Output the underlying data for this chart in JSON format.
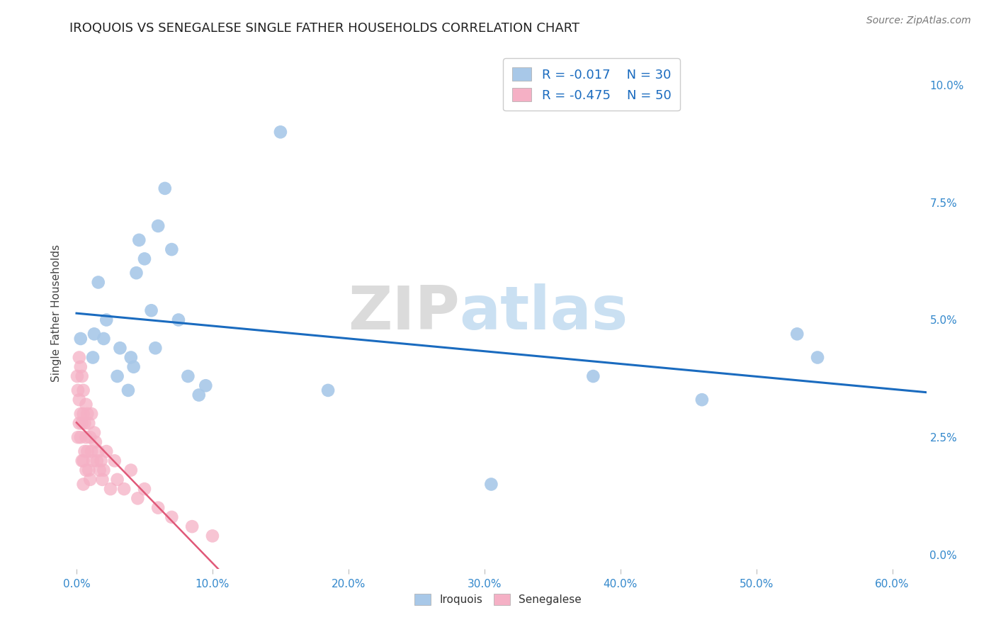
{
  "title": "IROQUOIS VS SENEGALESE SINGLE FATHER HOUSEHOLDS CORRELATION CHART",
  "source": "Source: ZipAtlas.com",
  "ylabel": "Single Father Households",
  "xlabel_ticks": [
    "0.0%",
    "10.0%",
    "20.0%",
    "30.0%",
    "40.0%",
    "50.0%",
    "60.0%"
  ],
  "xlabel_vals": [
    0.0,
    0.1,
    0.2,
    0.3,
    0.4,
    0.5,
    0.6
  ],
  "ylabel_ticks": [
    "0.0%",
    "2.5%",
    "5.0%",
    "7.5%",
    "10.0%"
  ],
  "ylabel_vals": [
    0.0,
    0.025,
    0.05,
    0.075,
    0.1
  ],
  "xlim": [
    -0.005,
    0.625
  ],
  "ylim": [
    -0.003,
    0.106
  ],
  "iroquois_R": -0.017,
  "iroquois_N": 30,
  "senegalese_R": -0.475,
  "senegalese_N": 50,
  "iroquois_color": "#a8c8e8",
  "senegalese_color": "#f5b0c5",
  "trendline_iroquois_color": "#1a6bbf",
  "trendline_senegalese_color": "#e05878",
  "watermark_1": "ZIP",
  "watermark_2": "atlas",
  "iroquois_x": [
    0.003,
    0.012,
    0.013,
    0.016,
    0.02,
    0.022,
    0.03,
    0.032,
    0.038,
    0.04,
    0.042,
    0.044,
    0.046,
    0.05,
    0.055,
    0.058,
    0.06,
    0.065,
    0.07,
    0.075,
    0.082,
    0.09,
    0.095,
    0.15,
    0.185,
    0.53,
    0.545,
    0.38,
    0.46,
    0.305
  ],
  "iroquois_y": [
    0.046,
    0.042,
    0.047,
    0.058,
    0.046,
    0.05,
    0.038,
    0.044,
    0.035,
    0.042,
    0.04,
    0.06,
    0.067,
    0.063,
    0.052,
    0.044,
    0.07,
    0.078,
    0.065,
    0.05,
    0.038,
    0.034,
    0.036,
    0.09,
    0.035,
    0.047,
    0.042,
    0.038,
    0.033,
    0.015
  ],
  "senegalese_x": [
    0.0005,
    0.001,
    0.001,
    0.002,
    0.002,
    0.002,
    0.003,
    0.003,
    0.003,
    0.004,
    0.004,
    0.004,
    0.005,
    0.005,
    0.005,
    0.005,
    0.006,
    0.006,
    0.007,
    0.007,
    0.007,
    0.008,
    0.008,
    0.009,
    0.009,
    0.01,
    0.01,
    0.011,
    0.011,
    0.012,
    0.013,
    0.014,
    0.015,
    0.016,
    0.017,
    0.018,
    0.019,
    0.02,
    0.022,
    0.025,
    0.028,
    0.03,
    0.035,
    0.04,
    0.045,
    0.05,
    0.06,
    0.07,
    0.085,
    0.1
  ],
  "senegalese_y": [
    0.038,
    0.035,
    0.025,
    0.042,
    0.033,
    0.028,
    0.04,
    0.03,
    0.025,
    0.038,
    0.028,
    0.02,
    0.035,
    0.03,
    0.02,
    0.015,
    0.028,
    0.022,
    0.032,
    0.025,
    0.018,
    0.03,
    0.022,
    0.028,
    0.018,
    0.025,
    0.016,
    0.03,
    0.022,
    0.02,
    0.026,
    0.024,
    0.02,
    0.022,
    0.018,
    0.02,
    0.016,
    0.018,
    0.022,
    0.014,
    0.02,
    0.016,
    0.014,
    0.018,
    0.012,
    0.014,
    0.01,
    0.008,
    0.006,
    0.004
  ]
}
